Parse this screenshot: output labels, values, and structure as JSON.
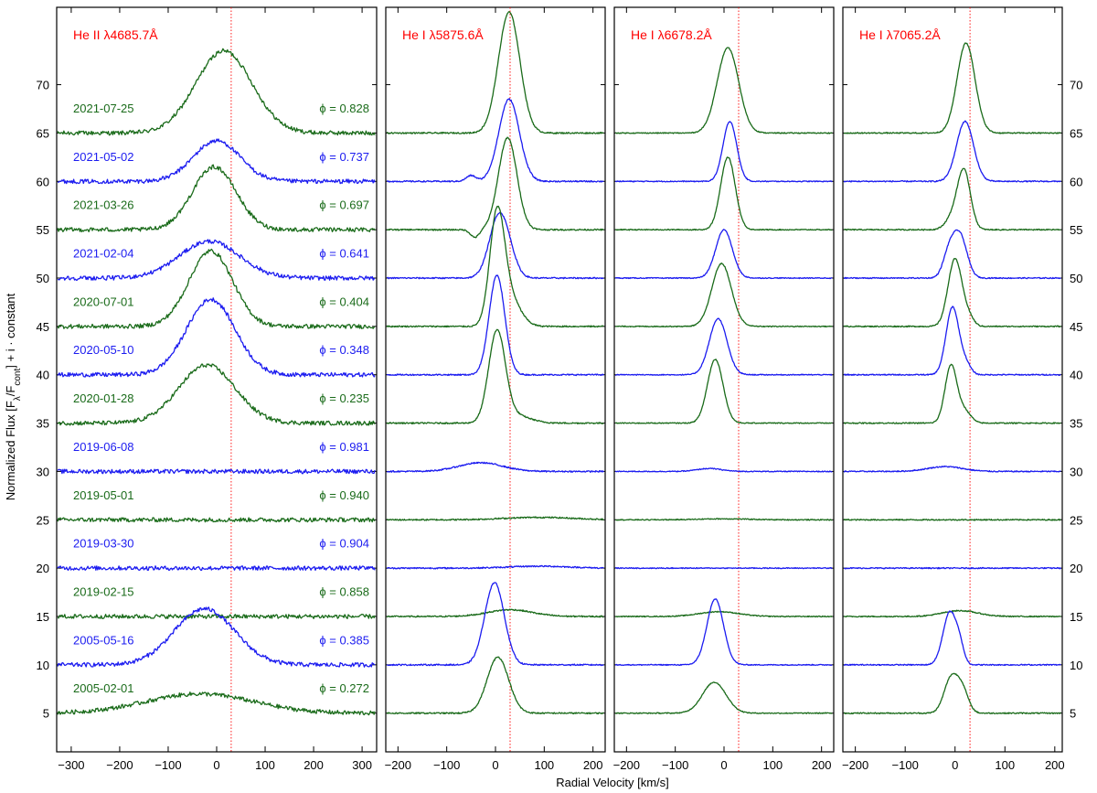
{
  "chart_data": {
    "type": "line",
    "xlabel": "Radial Velocity [km/s]",
    "ylabel": "Normalized Flux [F_λ/F_cont] + i · constant",
    "ylim": [
      1,
      78
    ],
    "yticks": [
      5,
      10,
      15,
      20,
      25,
      30,
      35,
      40,
      45,
      50,
      55,
      60,
      65,
      70
    ],
    "reference_velocity": 30,
    "colors": {
      "green": "#1a6b1a",
      "blue": "#1c1cf0",
      "label": "#ff0000",
      "reference_line": "#ff0000"
    },
    "observations": [
      {
        "date": "2021-07-25",
        "phase": "ϕ = 0.828",
        "color": "green",
        "offset": 65
      },
      {
        "date": "2021-05-02",
        "phase": "ϕ = 0.737",
        "color": "blue",
        "offset": 60
      },
      {
        "date": "2021-03-26",
        "phase": "ϕ = 0.697",
        "color": "green",
        "offset": 55
      },
      {
        "date": "2021-02-04",
        "phase": "ϕ = 0.641",
        "color": "blue",
        "offset": 50
      },
      {
        "date": "2020-07-01",
        "phase": "ϕ = 0.404",
        "color": "green",
        "offset": 45
      },
      {
        "date": "2020-05-10",
        "phase": "ϕ = 0.348",
        "color": "blue",
        "offset": 40
      },
      {
        "date": "2020-01-28",
        "phase": "ϕ = 0.235",
        "color": "green",
        "offset": 35
      },
      {
        "date": "2019-06-08",
        "phase": "ϕ = 0.981",
        "color": "blue",
        "offset": 30
      },
      {
        "date": "2019-05-01",
        "phase": "ϕ = 0.940",
        "color": "green",
        "offset": 25
      },
      {
        "date": "2019-03-30",
        "phase": "ϕ = 0.904",
        "color": "blue",
        "offset": 20
      },
      {
        "date": "2019-02-15",
        "phase": "ϕ = 0.858",
        "color": "green",
        "offset": 15
      },
      {
        "date": "2005-05-16",
        "phase": "ϕ = 0.385",
        "color": "blue",
        "offset": 10
      },
      {
        "date": "2005-02-01",
        "phase": "ϕ = 0.272",
        "color": "green",
        "offset": 5
      }
    ],
    "panels": [
      {
        "title": "He II λ4685.7Å",
        "xlim": [
          -330,
          330
        ],
        "xticks": [
          -300,
          -200,
          -100,
          0,
          100,
          200,
          300
        ],
        "noise": 0.22,
        "profiles": [
          {
            "lines": [
              {
                "center": 15,
                "amplitude": 8.5,
                "sigma": 58
              }
            ]
          },
          {
            "lines": [
              {
                "center": 0,
                "amplitude": 4.2,
                "sigma": 48
              }
            ]
          },
          {
            "lines": [
              {
                "center": -5,
                "amplitude": 6.5,
                "sigma": 45
              }
            ]
          },
          {
            "lines": [
              {
                "center": -15,
                "amplitude": 3.8,
                "sigma": 62
              }
            ]
          },
          {
            "lines": [
              {
                "center": -12,
                "amplitude": 7.8,
                "sigma": 45
              }
            ]
          },
          {
            "lines": [
              {
                "center": -12,
                "amplitude": 7.8,
                "sigma": 50
              }
            ]
          },
          {
            "lines": [
              {
                "center": -20,
                "amplitude": 6.0,
                "sigma": 58
              }
            ]
          },
          {
            "lines": []
          },
          {
            "lines": []
          },
          {
            "lines": []
          },
          {
            "lines": []
          },
          {
            "lines": [
              {
                "center": -25,
                "amplitude": 5.8,
                "sigma": 62
              }
            ]
          },
          {
            "lines": [
              {
                "center": -35,
                "amplitude": 2.0,
                "sigma": 110
              }
            ]
          }
        ]
      },
      {
        "title": "He I  λ5875.6Å",
        "xlim": [
          -225,
          225
        ],
        "xticks": [
          -200,
          -100,
          0,
          100,
          200
        ],
        "noise": 0.07,
        "profiles": [
          {
            "lines": [
              {
                "center": 28,
                "amplitude": 12.5,
                "sigma": 22
              }
            ]
          },
          {
            "lines": [
              {
                "center": 28,
                "amplitude": 8.5,
                "sigma": 21
              },
              {
                "center": -50,
                "amplitude": 0.6,
                "sigma": 10
              }
            ]
          },
          {
            "lines": [
              {
                "center": 25,
                "amplitude": 9.5,
                "sigma": 19
              },
              {
                "center": -42,
                "amplitude": -0.8,
                "sigma": 9
              }
            ]
          },
          {
            "lines": [
              {
                "center": 8,
                "amplitude": 6.6,
                "sigma": 20
              },
              {
                "center": 32,
                "amplitude": 0.6,
                "sigma": 15
              }
            ]
          },
          {
            "lines": [
              {
                "center": 3,
                "amplitude": 10.8,
                "sigma": 15
              },
              {
                "center": 28,
                "amplitude": 3.0,
                "sigma": 22
              }
            ]
          },
          {
            "lines": [
              {
                "center": 3,
                "amplitude": 10.3,
                "sigma": 16
              }
            ]
          },
          {
            "lines": [
              {
                "center": 3,
                "amplitude": 9.3,
                "sigma": 17
              },
              {
                "center": 40,
                "amplitude": 0.8,
                "sigma": 30
              }
            ]
          },
          {
            "lines": [
              {
                "center": -30,
                "amplitude": 0.9,
                "sigma": 45
              }
            ]
          },
          {
            "lines": [
              {
                "center": 90,
                "amplitude": 0.25,
                "sigma": 70
              }
            ]
          },
          {
            "lines": [
              {
                "center": 90,
                "amplitude": 0.2,
                "sigma": 60
              }
            ]
          },
          {
            "lines": [
              {
                "center": 30,
                "amplitude": 0.7,
                "sigma": 45
              }
            ]
          },
          {
            "lines": [
              {
                "center": -2,
                "amplitude": 8.5,
                "sigma": 20
              }
            ]
          },
          {
            "lines": [
              {
                "center": 5,
                "amplitude": 5.8,
                "sigma": 22
              }
            ]
          }
        ]
      },
      {
        "title": "He I  λ6678.2Å",
        "xlim": [
          -225,
          225
        ],
        "xticks": [
          -200,
          -100,
          0,
          100,
          200
        ],
        "noise": 0.05,
        "profiles": [
          {
            "lines": [
              {
                "center": 8,
                "amplitude": 8.8,
                "sigma": 22
              }
            ]
          },
          {
            "lines": [
              {
                "center": 12,
                "amplitude": 6.2,
                "sigma": 14
              }
            ]
          },
          {
            "lines": [
              {
                "center": 8,
                "amplitude": 7.5,
                "sigma": 15
              }
            ]
          },
          {
            "lines": [
              {
                "center": 0,
                "amplitude": 5.0,
                "sigma": 17
              }
            ]
          },
          {
            "lines": [
              {
                "center": -5,
                "amplitude": 6.5,
                "sigma": 20
              }
            ]
          },
          {
            "lines": [
              {
                "center": -12,
                "amplitude": 5.8,
                "sigma": 18
              }
            ]
          },
          {
            "lines": [
              {
                "center": -18,
                "amplitude": 6.6,
                "sigma": 16
              }
            ]
          },
          {
            "lines": [
              {
                "center": -30,
                "amplitude": 0.3,
                "sigma": 25
              }
            ]
          },
          {
            "lines": [
              {
                "center": 0,
                "amplitude": 0.1,
                "sigma": 50
              }
            ]
          },
          {
            "lines": []
          },
          {
            "lines": [
              {
                "center": -10,
                "amplitude": 0.5,
                "sigma": 40
              }
            ]
          },
          {
            "lines": [
              {
                "center": -18,
                "amplitude": 6.8,
                "sigma": 17
              }
            ]
          },
          {
            "lines": [
              {
                "center": -20,
                "amplitude": 3.2,
                "sigma": 24
              }
            ]
          }
        ]
      },
      {
        "title": "He I  λ7065.2Å",
        "xlim": [
          -225,
          215
        ],
        "xticks": [
          -200,
          -100,
          0,
          100,
          200
        ],
        "noise": 0.06,
        "profiles": [
          {
            "lines": [
              {
                "center": 22,
                "amplitude": 9.3,
                "sigma": 18
              }
            ]
          },
          {
            "lines": [
              {
                "center": 20,
                "amplitude": 6.2,
                "sigma": 17
              }
            ]
          },
          {
            "lines": [
              {
                "center": 18,
                "amplitude": 6.0,
                "sigma": 13
              },
              {
                "center": -5,
                "amplitude": 1.2,
                "sigma": 14
              }
            ]
          },
          {
            "lines": [
              {
                "center": 10,
                "amplitude": 4.3,
                "sigma": 14
              },
              {
                "center": -12,
                "amplitude": 2.5,
                "sigma": 12
              }
            ]
          },
          {
            "lines": [
              {
                "center": 0,
                "amplitude": 7.0,
                "sigma": 14
              },
              {
                "center": 28,
                "amplitude": 0.8,
                "sigma": 10
              }
            ]
          },
          {
            "lines": [
              {
                "center": -5,
                "amplitude": 7.0,
                "sigma": 13
              },
              {
                "center": 22,
                "amplitude": 1.0,
                "sigma": 10
              }
            ]
          },
          {
            "lines": [
              {
                "center": -8,
                "amplitude": 6.0,
                "sigma": 12
              },
              {
                "center": 20,
                "amplitude": 1.2,
                "sigma": 12
              }
            ]
          },
          {
            "lines": [
              {
                "center": -20,
                "amplitude": 0.5,
                "sigma": 35
              }
            ]
          },
          {
            "lines": []
          },
          {
            "lines": []
          },
          {
            "lines": [
              {
                "center": 10,
                "amplitude": 0.6,
                "sigma": 35
              }
            ]
          },
          {
            "lines": [
              {
                "center": -10,
                "amplitude": 5.5,
                "sigma": 14
              },
              {
                "center": 10,
                "amplitude": 1.2,
                "sigma": 8
              }
            ]
          },
          {
            "lines": [
              {
                "center": -8,
                "amplitude": 3.6,
                "sigma": 14
              },
              {
                "center": 15,
                "amplitude": 2.2,
                "sigma": 12
              }
            ]
          }
        ]
      }
    ]
  }
}
